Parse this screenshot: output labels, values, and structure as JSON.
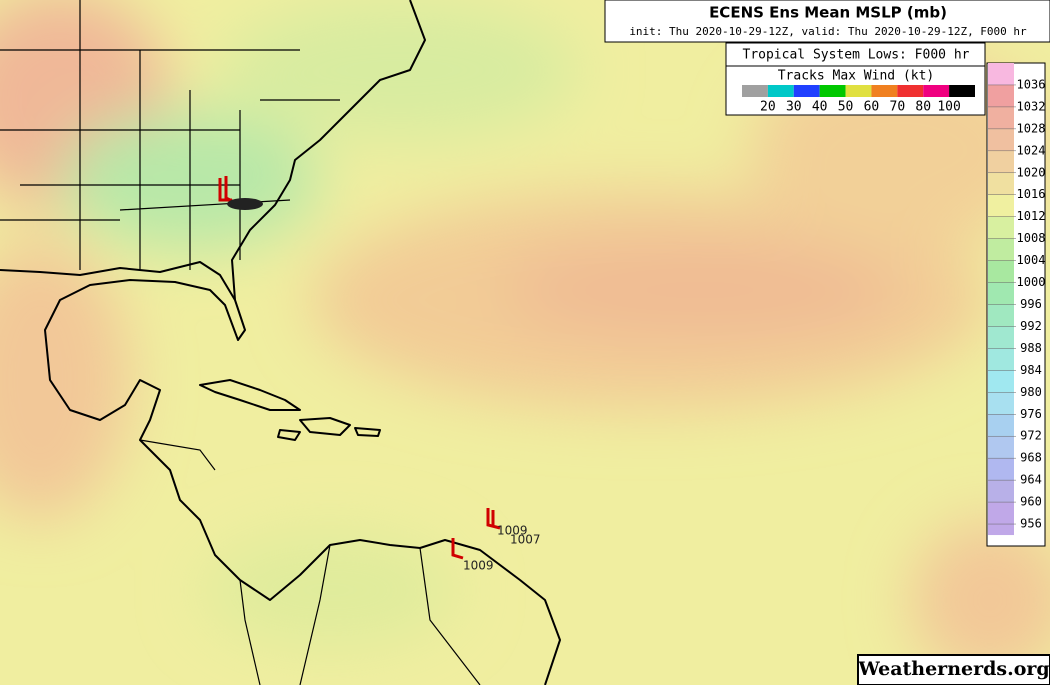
{
  "header": {
    "title": "ECENS Ens Mean MSLP (mb)",
    "subtitle": "init: Thu 2020-10-29-12Z, valid: Thu 2020-10-29-12Z, F000 hr"
  },
  "legend": {
    "title": "Tropical System Lows: F000 hr",
    "tracks_title": "Tracks Max Wind (kt)",
    "track_colors": [
      "#a0a0a0",
      "#00c8c8",
      "#2040ff",
      "#00c800",
      "#e0e040",
      "#f08020",
      "#f03030",
      "#f00080",
      "#000000"
    ],
    "track_labels": [
      20,
      30,
      40,
      50,
      60,
      70,
      80,
      100
    ]
  },
  "colorbar": {
    "levels": [
      1036,
      1032,
      1028,
      1024,
      1020,
      1016,
      1012,
      1008,
      1004,
      1000,
      996,
      992,
      988,
      984,
      980,
      976,
      972,
      968,
      964,
      960,
      956
    ],
    "colors": [
      "#f8b8e0",
      "#f0a0a0",
      "#f0b0a0",
      "#f0c0a0",
      "#f0d0a0",
      "#f0e0a0",
      "#f0f0a0",
      "#d8f0a0",
      "#c0eca0",
      "#a8e8a0",
      "#a0e8b0",
      "#a0e8c0",
      "#a0e8d0",
      "#a0e8e0",
      "#a0e8f0",
      "#a8e0f0",
      "#a8d0f0",
      "#b0c8f0",
      "#b0b8f0",
      "#b8b0e8",
      "#c0a8e8"
    ]
  },
  "lows": [
    1009,
    1007,
    1009
  ],
  "watermark": "Weathernerds.org"
}
